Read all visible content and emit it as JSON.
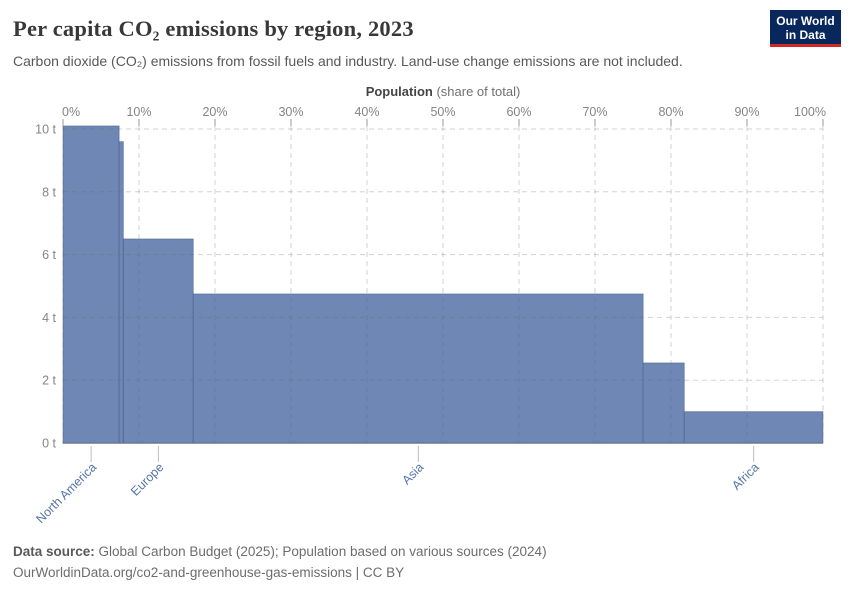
{
  "header": {
    "logo": {
      "line1": "Our World",
      "line2": "in Data"
    }
  },
  "chart_data": {
    "type": "bar",
    "variant": "marimekko",
    "title": "Per capita CO₂ emissions by region, 2023",
    "subtitle": "Carbon dioxide (CO₂) emissions from fossil fuels and industry. Land-use change emissions are not included.",
    "x_axis": {
      "title_bold": "Population",
      "title_rest": "(share of total)",
      "tick_values": [
        0,
        10,
        20,
        30,
        40,
        50,
        60,
        70,
        80,
        90,
        100
      ],
      "tick_labels": [
        "0%",
        "10%",
        "20%",
        "30%",
        "40%",
        "50%",
        "60%",
        "70%",
        "80%",
        "90%",
        "100%"
      ],
      "range_pct": [
        0,
        100
      ],
      "grid": true
    },
    "y_axis": {
      "unit": "t",
      "tick_values": [
        0,
        2,
        4,
        6,
        8,
        10
      ],
      "tick_labels": [
        "0 t",
        "2 t",
        "4 t",
        "6 t",
        "8 t",
        "10 t"
      ],
      "range": [
        0,
        10
      ],
      "grid": true
    },
    "series": [
      {
        "name": "North America",
        "key": "north-america",
        "population_share_pct": 7.4,
        "co2_t_per_capita": 10.1,
        "labeled": true
      },
      {
        "name": "",
        "key": "unlabeled-region-1",
        "population_share_pct": 0.55,
        "co2_t_per_capita": 9.6,
        "labeled": false
      },
      {
        "name": "Europe",
        "key": "europe",
        "population_share_pct": 9.2,
        "co2_t_per_capita": 6.5,
        "labeled": true
      },
      {
        "name": "Asia",
        "key": "asia",
        "population_share_pct": 59.2,
        "co2_t_per_capita": 4.75,
        "labeled": true
      },
      {
        "name": "",
        "key": "unlabeled-region-2",
        "population_share_pct": 5.4,
        "co2_t_per_capita": 2.55,
        "labeled": false
      },
      {
        "name": "Africa",
        "key": "africa",
        "population_share_pct": 18.25,
        "co2_t_per_capita": 1.0,
        "labeled": true
      }
    ],
    "colors": {
      "bar_fill": "#6e87b4",
      "bar_stroke": "#32497a",
      "region_label": "#5674a8",
      "axis_text": "#858585",
      "logo_bg": "#08275c",
      "logo_accent": "#d22823"
    }
  },
  "footer": {
    "line1_bold": "Data source:",
    "line1_rest": " Global Carbon Budget (2025); Population based on various sources (2024)",
    "line2": "OurWorldinData.org/co2-and-greenhouse-gas-emissions | CC BY"
  }
}
